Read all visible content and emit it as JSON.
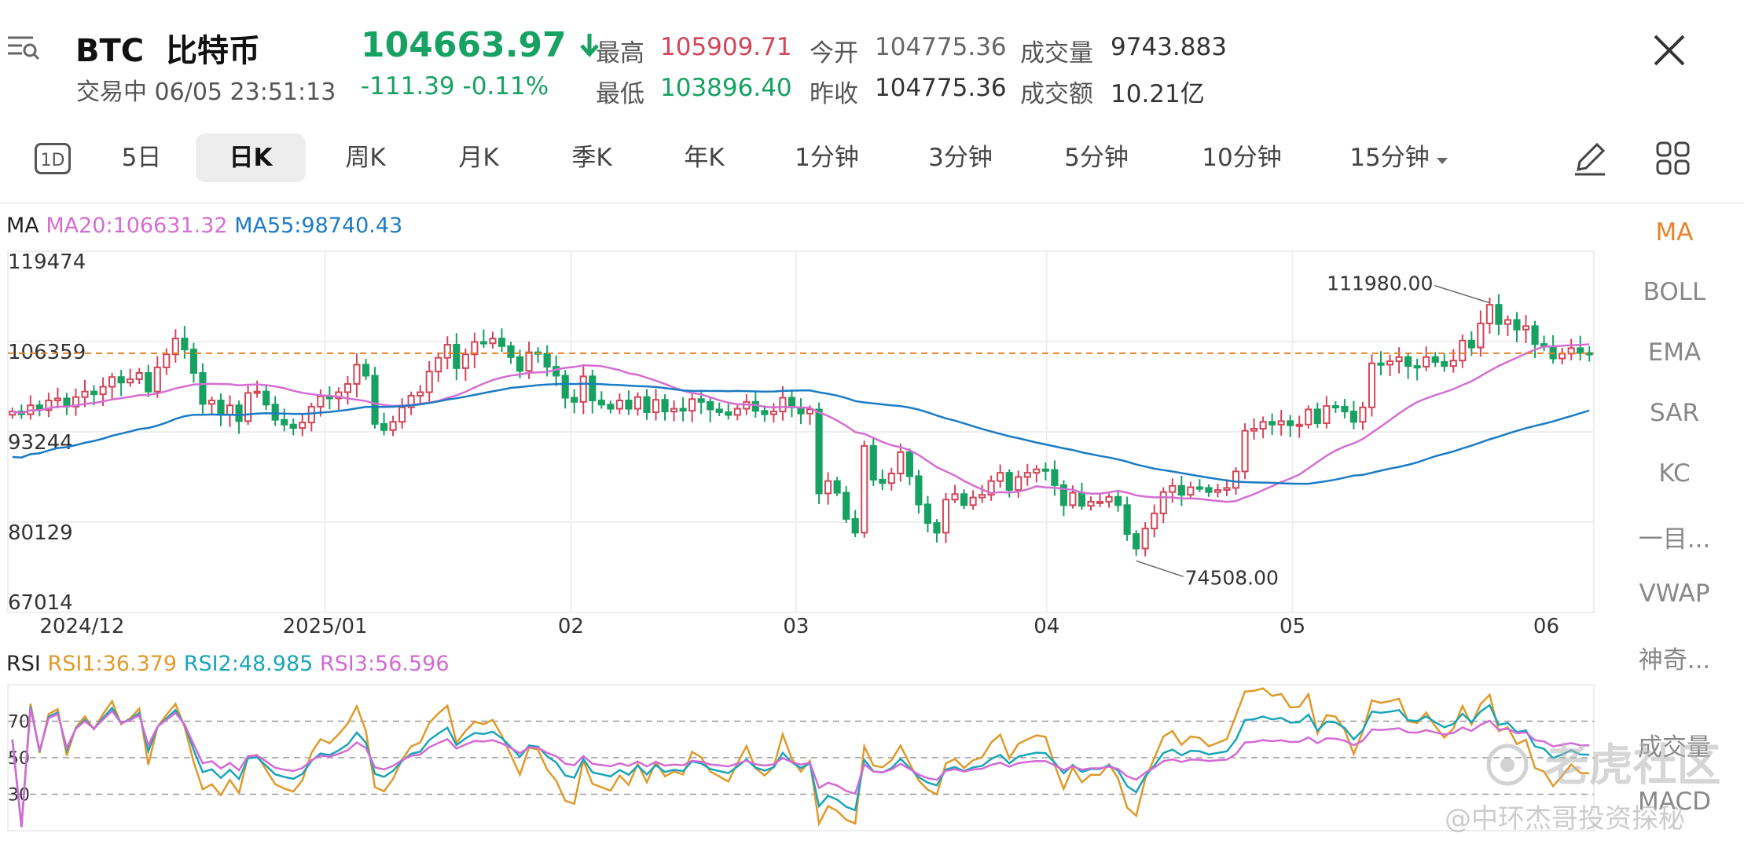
{
  "header": {
    "symbol": "BTC",
    "name": "比特币",
    "status": "交易中",
    "datetime": "06/05 23:51:13",
    "price": "104663.97",
    "change": "-111.39",
    "change_pct": "-0.11%",
    "stats": {
      "high_label": "最高",
      "high": "105909.71",
      "low_label": "最低",
      "low": "103896.40",
      "open_label": "今开",
      "open": "104775.36",
      "prev_close_label": "昨收",
      "prev_close": "104775.36",
      "volume_label": "成交量",
      "volume": "9743.883",
      "turnover_label": "成交额",
      "turnover": "10.21亿"
    }
  },
  "tabs": [
    {
      "label": "5日"
    },
    {
      "label": "日K"
    },
    {
      "label": "周K"
    },
    {
      "label": "月K"
    },
    {
      "label": "季K"
    },
    {
      "label": "年K"
    },
    {
      "label": "1分钟"
    },
    {
      "label": "3分钟"
    },
    {
      "label": "5分钟"
    },
    {
      "label": "10分钟"
    },
    {
      "label": "15分钟"
    }
  ],
  "oneday_label": "1D",
  "active_tab": "日K",
  "indicators": [
    "MA",
    "BOLL",
    "EMA",
    "SAR",
    "KC",
    "一目...",
    "VWAP",
    "神奇..."
  ],
  "sub_indicators": [
    "成交量",
    "MACD"
  ],
  "ma_legend": {
    "title": "MA",
    "ma20": "MA20:106631.32",
    "ma55": "MA55:98740.43"
  },
  "rsi_legend": {
    "title": "RSI",
    "rsi1": "RSI1:36.379",
    "rsi2": "RSI2:48.985",
    "rsi3": "RSI3:56.596"
  },
  "watermark": {
    "brand": "老虎社区",
    "user": "@中环杰哥投资探秘"
  },
  "colors": {
    "up": "#d2465a",
    "down": "#17a163",
    "ma20": "#d56ed1",
    "ma55": "#1b7bc4",
    "rsi1": "#e09a2a",
    "rsi2": "#19a5b8",
    "rsi3": "#d36ad6",
    "accent": "#e8832b"
  },
  "chart_data": [
    {
      "type": "candlestick",
      "y_ticks": [
        119474,
        106359,
        93244,
        80129,
        67014
      ],
      "ylim": [
        67014,
        119474
      ],
      "x_labels": [
        "2024/12",
        "2025/01",
        "02",
        "03",
        "04",
        "05",
        "06"
      ],
      "current_price_line": 104663.97,
      "annotations": [
        {
          "text": "111980.00",
          "value": 111980
        },
        {
          "text": "74508.00",
          "value": 74508
        }
      ],
      "series_closes": [
        96200,
        95800,
        97100,
        96400,
        97800,
        98100,
        96900,
        98300,
        99100,
        98700,
        99800,
        101200,
        100400,
        100900,
        101800,
        99100,
        102600,
        104500,
        106800,
        105200,
        101800,
        97300,
        97800,
        95700,
        97100,
        94800,
        98900,
        99100,
        97200,
        95000,
        94300,
        93800,
        94600,
        96900,
        98400,
        98100,
        99000,
        100200,
        103000,
        101400,
        94400,
        93500,
        94700,
        96800,
        98500,
        99000,
        102000,
        104000,
        105900,
        102500,
        104500,
        106300,
        106100,
        106800,
        105700,
        104100,
        102100,
        104800,
        104600,
        102700,
        101400,
        98200,
        97600,
        101300,
        97800,
        97200,
        96600,
        97800,
        96600,
        98300,
        96100,
        97900,
        96200,
        96600,
        96300,
        98000,
        97600,
        96500,
        96100,
        95700,
        96600,
        97600,
        96300,
        95800,
        96200,
        98200,
        96800,
        95900,
        96500,
        84300,
        86100,
        84400,
        80600,
        78600,
        91200,
        86300,
        85800,
        87200,
        90300,
        86800,
        82700,
        80000,
        78600,
        83400,
        84200,
        82600,
        83700,
        84100,
        86100,
        87300,
        84800,
        86700,
        87300,
        87800,
        87700,
        85500,
        82600,
        84400,
        82500,
        83100,
        83100,
        83800,
        82600,
        78400,
        76300,
        79200,
        81400,
        84500,
        85400,
        84100,
        85200,
        85100,
        84500,
        84800,
        85100,
        87500,
        93400,
        93700,
        94700,
        94300,
        94800,
        94200,
        94300,
        96500,
        94500,
        97000,
        96900,
        96200,
        94700,
        96800,
        103200,
        103000,
        103500,
        104100,
        102800,
        102700,
        104100,
        103400,
        102800,
        103600,
        106500,
        105500,
        109000,
        111700,
        108900,
        109500,
        108100,
        108600,
        106000,
        105600,
        103900,
        104600,
        105400,
        104700,
        104664
      ],
      "ma20": "overlay series",
      "ma55": "overlay series"
    },
    {
      "type": "line",
      "name": "RSI",
      "y_ticks": [
        70,
        50,
        30
      ],
      "ylim": [
        10,
        90
      ]
    }
  ]
}
